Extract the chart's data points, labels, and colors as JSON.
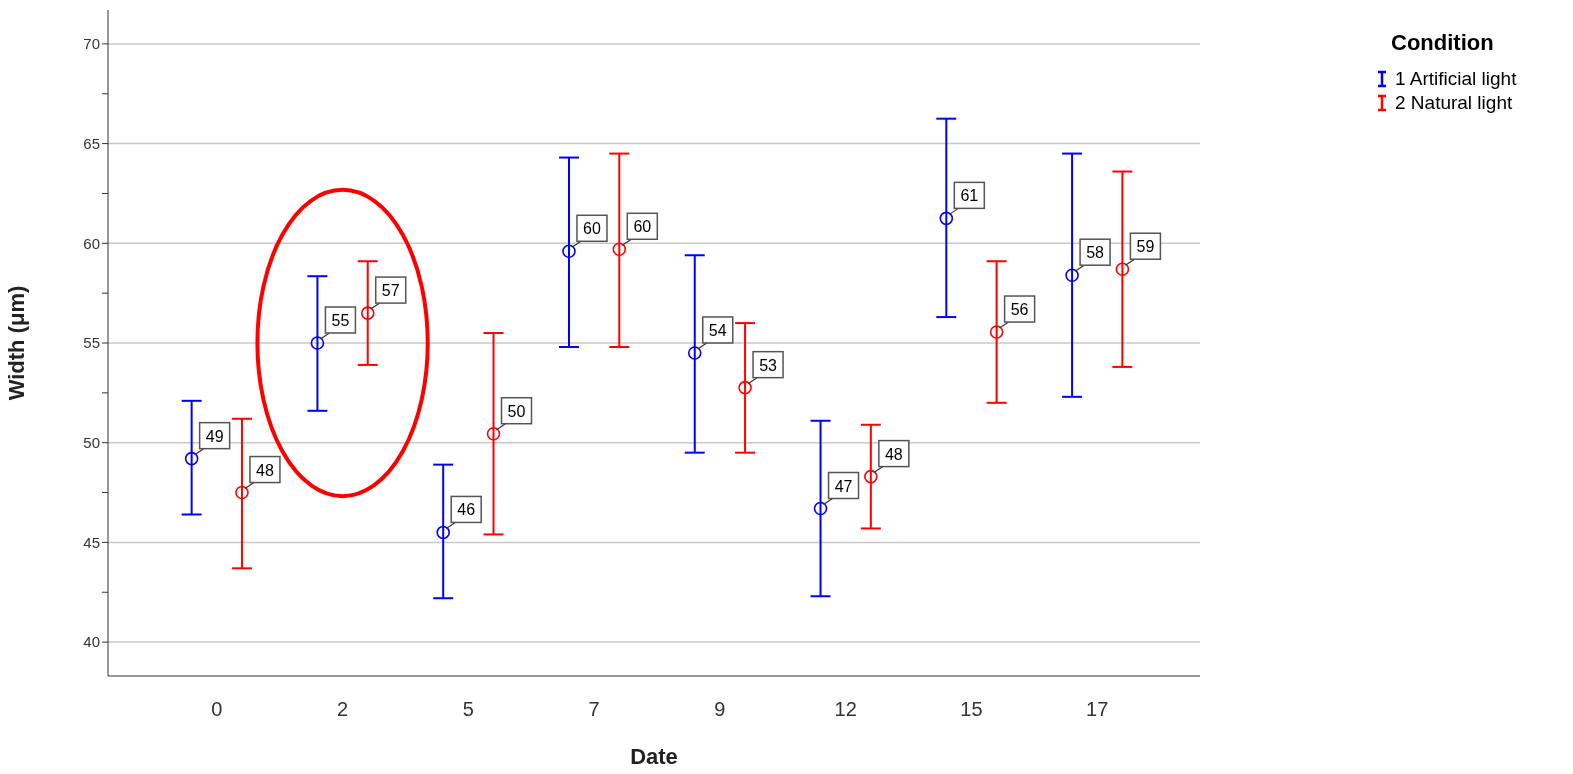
{
  "chart_data": {
    "type": "scatter",
    "xlabel": "Date",
    "ylabel": "Width (μm)",
    "legend_title": "Condition",
    "categories": [
      "0",
      "2",
      "5",
      "7",
      "9",
      "12",
      "15",
      "17"
    ],
    "series": [
      {
        "name": "1  Artificial light",
        "color": "#0000ff",
        "values": [
          49.2,
          55.0,
          45.5,
          59.6,
          54.5,
          46.7,
          61.25,
          58.4
        ],
        "errors": [
          [
            46.4,
            52.1
          ],
          [
            51.6,
            58.35
          ],
          [
            42.2,
            48.9
          ],
          [
            54.8,
            64.3
          ],
          [
            49.5,
            59.4
          ],
          [
            42.3,
            51.1
          ],
          [
            56.3,
            66.25
          ],
          [
            52.3,
            64.5
          ]
        ],
        "value_labels": [
          "49",
          "55",
          "46",
          "60",
          "54",
          "47",
          "61",
          "58"
        ]
      },
      {
        "name": "2  Natural light",
        "color": "#ff0000",
        "values": [
          47.5,
          56.5,
          50.45,
          59.7,
          52.76,
          48.3,
          55.55,
          58.7
        ],
        "errors": [
          [
            43.7,
            51.2
          ],
          [
            53.9,
            59.1
          ],
          [
            45.4,
            55.5
          ],
          [
            54.8,
            64.5
          ],
          [
            49.5,
            56.0
          ],
          [
            45.7,
            50.9
          ],
          [
            52.0,
            59.1
          ],
          [
            53.8,
            63.6
          ]
        ],
        "value_labels": [
          "48",
          "57",
          "50",
          "60",
          "53",
          "48",
          "56",
          "59"
        ]
      }
    ],
    "ylim": [
      38.3,
      71.7
    ],
    "yticks": [
      40,
      {
        "value": 42.5,
        "label": null
      },
      45,
      {
        "value": 47.5,
        "label": null
      },
      50,
      {
        "value": 52.5,
        "label": null
      },
      55,
      {
        "value": 57.5,
        "label": null
      },
      60,
      {
        "value": 62.5,
        "label": null
      },
      65,
      {
        "value": 67.5,
        "label": null
      },
      70
    ],
    "grid": "y",
    "legend": "top right",
    "marker": "circle"
  }
}
